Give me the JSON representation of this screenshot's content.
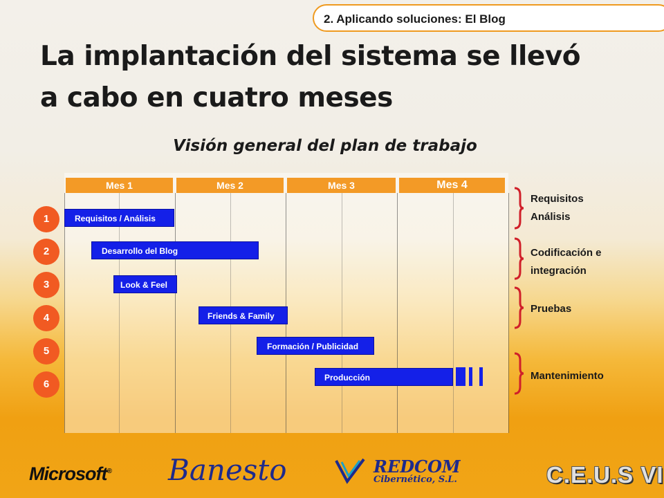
{
  "header": {
    "section_tag": "2. Aplicando soluciones: El Blog",
    "title": "La implantación del sistema se llevó a cabo en cuatro meses",
    "subtitle": "Visión general del plan de trabajo"
  },
  "months": [
    "Mes 1",
    "Mes 2",
    "Mes 3",
    "Mes 4"
  ],
  "steps": [
    "1",
    "2",
    "3",
    "4",
    "5",
    "6"
  ],
  "tasks": [
    {
      "label": "Requisitos / Análisis"
    },
    {
      "label": "Desarrollo del Blog"
    },
    {
      "label": "Look & Feel"
    },
    {
      "label": "Friends & Family"
    },
    {
      "label": "Formación / Publicidad"
    },
    {
      "label": "Producción"
    }
  ],
  "phases": [
    {
      "label": "Requisitos Análisis"
    },
    {
      "label": "Codificación e integración"
    },
    {
      "label": "Pruebas"
    },
    {
      "label": "Mantenimiento"
    }
  ],
  "colors": {
    "bar": "#1420e8",
    "month_header": "#f39a26",
    "step_circle": "#f15a22",
    "brace": "#d0202a"
  },
  "logos": {
    "microsoft": "Microsoft",
    "banesto": "Banesto",
    "redcom": "REDCOM",
    "redcom_sub": "Cibernético, S.L.",
    "ceus": "C.E.U.S VI"
  }
}
